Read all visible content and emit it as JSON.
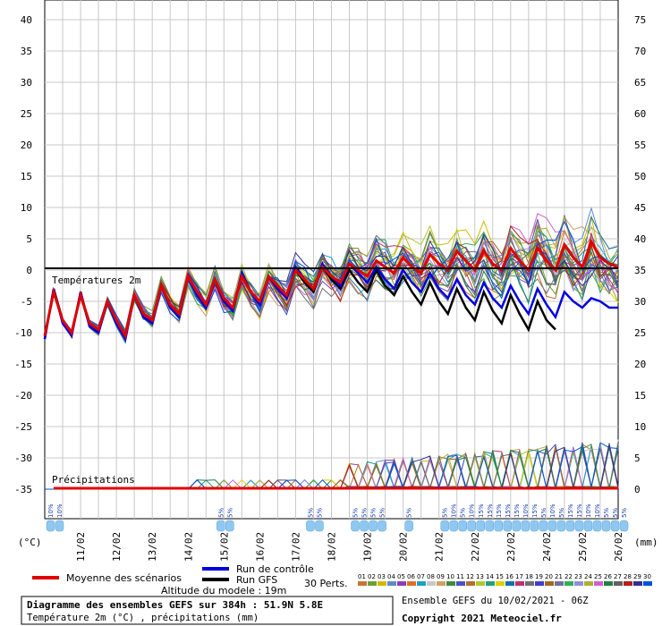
{
  "chart_data": {
    "type": "line",
    "temp_section_label": "Températures 2m",
    "precip_section_label": "Précipitations",
    "left_axis": {
      "unit": "(°C)",
      "ticks": [
        40,
        35,
        30,
        25,
        20,
        15,
        10,
        5,
        0,
        -5,
        -10,
        -15,
        -20,
        -25,
        -30,
        -35
      ],
      "range": [
        -35,
        40
      ]
    },
    "right_axis": {
      "unit": "(mm)",
      "ticks": [
        75,
        70,
        65,
        60,
        55,
        50,
        45,
        40,
        35,
        30,
        25,
        20,
        15,
        10,
        5,
        0
      ],
      "range": [
        0,
        75
      ]
    },
    "x_labels": [
      "11/02",
      "12/02",
      "13/02",
      "14/02",
      "15/02",
      "16/02",
      "17/02",
      "18/02",
      "19/02",
      "20/02",
      "21/02",
      "22/02",
      "23/02",
      "24/02",
      "25/02",
      "26/02"
    ],
    "mean_scenarios": {
      "name": "Moyenne des scénarios",
      "color": "#e00000",
      "x_hours": [
        0,
        6,
        12,
        18,
        24,
        30,
        36,
        42,
        48,
        54,
        60,
        66,
        72,
        78,
        84,
        90,
        96,
        102,
        108,
        114,
        120,
        126,
        132,
        138,
        144,
        150,
        156,
        162,
        168,
        174,
        180,
        186,
        192,
        198,
        204,
        210,
        216,
        222,
        228,
        234,
        240,
        246,
        252,
        258,
        264,
        270,
        276,
        282,
        288,
        294,
        300,
        306,
        312,
        318,
        324,
        330,
        336,
        342,
        348,
        354,
        360,
        366,
        372,
        378,
        384
      ],
      "values": [
        -10.5,
        -3.5,
        -8,
        -10,
        -4,
        -8.5,
        -9.5,
        -5,
        -8,
        -10.5,
        -4,
        -7,
        -8,
        -2.5,
        -5.5,
        -7,
        -1,
        -3.5,
        -5.5,
        -1.5,
        -4.5,
        -6,
        -1,
        -3.5,
        -5,
        -1,
        -2.5,
        -4,
        0,
        -1.5,
        -3,
        0.5,
        -1,
        -2,
        1,
        0,
        -1,
        1.5,
        0.5,
        -0.5,
        2,
        0.5,
        -0.5,
        2.5,
        1,
        0,
        3,
        1.5,
        0,
        3,
        1,
        0,
        3.5,
        1.5,
        0,
        3.5,
        1.5,
        0,
        4,
        2,
        0.5,
        4.5,
        2,
        1,
        0.5
      ]
    },
    "control_run": {
      "name": "Run de contrôle",
      "color": "#0000e0",
      "values": [
        -11,
        -3,
        -8.5,
        -10.5,
        -3.5,
        -9,
        -10,
        -5,
        -8.5,
        -11,
        -4,
        -7.5,
        -8.5,
        -2.5,
        -6,
        -7.5,
        -1,
        -4,
        -6,
        -1.5,
        -5,
        -6.5,
        -0.5,
        -3.5,
        -5.5,
        -1,
        -3,
        -4.5,
        0.5,
        -1.5,
        -3,
        1,
        -1,
        -2.5,
        1,
        -0.5,
        -2,
        0.5,
        -1.5,
        -3,
        0,
        -2,
        -3.5,
        -0.5,
        -3,
        -4.5,
        -1.5,
        -4,
        -5.5,
        -2,
        -4.5,
        -6,
        -2.5,
        -5,
        -7,
        -3,
        -5.5,
        -7.5,
        -3.5,
        -5,
        -6,
        -4.5,
        -5,
        -6,
        -6
      ]
    },
    "gfs_run": {
      "name": "Run GFS",
      "color": "#000000",
      "values": [
        -11,
        -3,
        -8,
        -10.5,
        -3.5,
        -9,
        -10,
        -5,
        -8.5,
        -11,
        -4,
        -7.5,
        -8.5,
        -2.5,
        -6,
        -7.5,
        -1,
        -4,
        -6,
        -1.5,
        -5,
        -6.5,
        -0.5,
        -3.5,
        -5.5,
        -1,
        -3,
        -4.5,
        0,
        -2,
        -3.5,
        0.5,
        -1.5,
        -3,
        0,
        -2,
        -3.5,
        0,
        -2.5,
        -4,
        -1,
        -3.5,
        -5.5,
        -2,
        -5,
        -7,
        -3,
        -6,
        -8,
        -3.5,
        -6.5,
        -8.5,
        -4,
        -7,
        -9.5,
        -5,
        -8,
        -9.5,
        null,
        null,
        null,
        null,
        null,
        null,
        null
      ]
    },
    "perturbations_label": "30 Perts.",
    "perturbation_ids": [
      "01",
      "02",
      "03",
      "04",
      "05",
      "06",
      "07",
      "08",
      "09",
      "10",
      "11",
      "12",
      "13",
      "14",
      "15",
      "16",
      "17",
      "18",
      "19",
      "20",
      "21",
      "22",
      "23",
      "24",
      "25",
      "26",
      "27",
      "28",
      "29",
      "30"
    ],
    "perturbation_colors": [
      "#c87533",
      "#6e9e3c",
      "#d4b800",
      "#5b8cc8",
      "#8b3fb5",
      "#e07020",
      "#1ea0c8",
      "#c8c8c8",
      "#d2a060",
      "#3c8c3c",
      "#5050c0",
      "#b07030",
      "#b0c830",
      "#20a080",
      "#e0d000",
      "#1070b0",
      "#c03070",
      "#707070",
      "#4040d0",
      "#a06820",
      "#7070a0",
      "#30b050",
      "#9090e0",
      "#b0b030",
      "#d060d0",
      "#208040",
      "#606060",
      "#b02020",
      "#303090",
      "#0050e0"
    ],
    "snow_labels": [
      {
        "day": 0,
        "text": "10%"
      },
      {
        "day": 0.25,
        "text": "10%"
      },
      {
        "day": 4.75,
        "text": "5%"
      },
      {
        "day": 5.0,
        "text": "5%"
      },
      {
        "day": 7.25,
        "text": "5%"
      },
      {
        "day": 7.5,
        "text": "5%"
      },
      {
        "day": 8.5,
        "text": "5%"
      },
      {
        "day": 8.75,
        "text": "5%"
      },
      {
        "day": 9.0,
        "text": "5%"
      },
      {
        "day": 9.25,
        "text": "5%"
      },
      {
        "day": 10.0,
        "text": "5%"
      },
      {
        "day": 11.0,
        "text": "5%"
      },
      {
        "day": 11.25,
        "text": "10%"
      },
      {
        "day": 11.5,
        "text": "5%"
      },
      {
        "day": 11.75,
        "text": "10%"
      },
      {
        "day": 12.0,
        "text": "15%"
      },
      {
        "day": 12.25,
        "text": "15%"
      },
      {
        "day": 12.5,
        "text": "15%"
      },
      {
        "day": 12.75,
        "text": "15%"
      },
      {
        "day": 13.0,
        "text": "15%"
      },
      {
        "day": 13.25,
        "text": "10%"
      },
      {
        "day": 13.5,
        "text": "15%"
      },
      {
        "day": 13.75,
        "text": "5%"
      },
      {
        "day": 14.0,
        "text": "10%"
      },
      {
        "day": 14.25,
        "text": "5%"
      },
      {
        "day": 14.5,
        "text": "15%"
      },
      {
        "day": 14.75,
        "text": "15%"
      },
      {
        "day": 15.0,
        "text": "10%"
      },
      {
        "day": 15.25,
        "text": "10%"
      },
      {
        "day": 15.5,
        "text": "5%"
      },
      {
        "day": 15.75,
        "text": "5%"
      },
      {
        "day": 16.0,
        "text": "5%"
      }
    ],
    "altitude": "Altitude du modele : 19m",
    "footer_title": "Diagramme des ensembles GEFS sur 384h : 51.9N 5.8E",
    "footer_subtitle": "Température 2m (°C) , précipitations (mm)",
    "ensemble_run": "Ensemble GEFS du 10/02/2021 - 06Z",
    "copyright": "Copyright 2021 Meteociel.fr"
  }
}
